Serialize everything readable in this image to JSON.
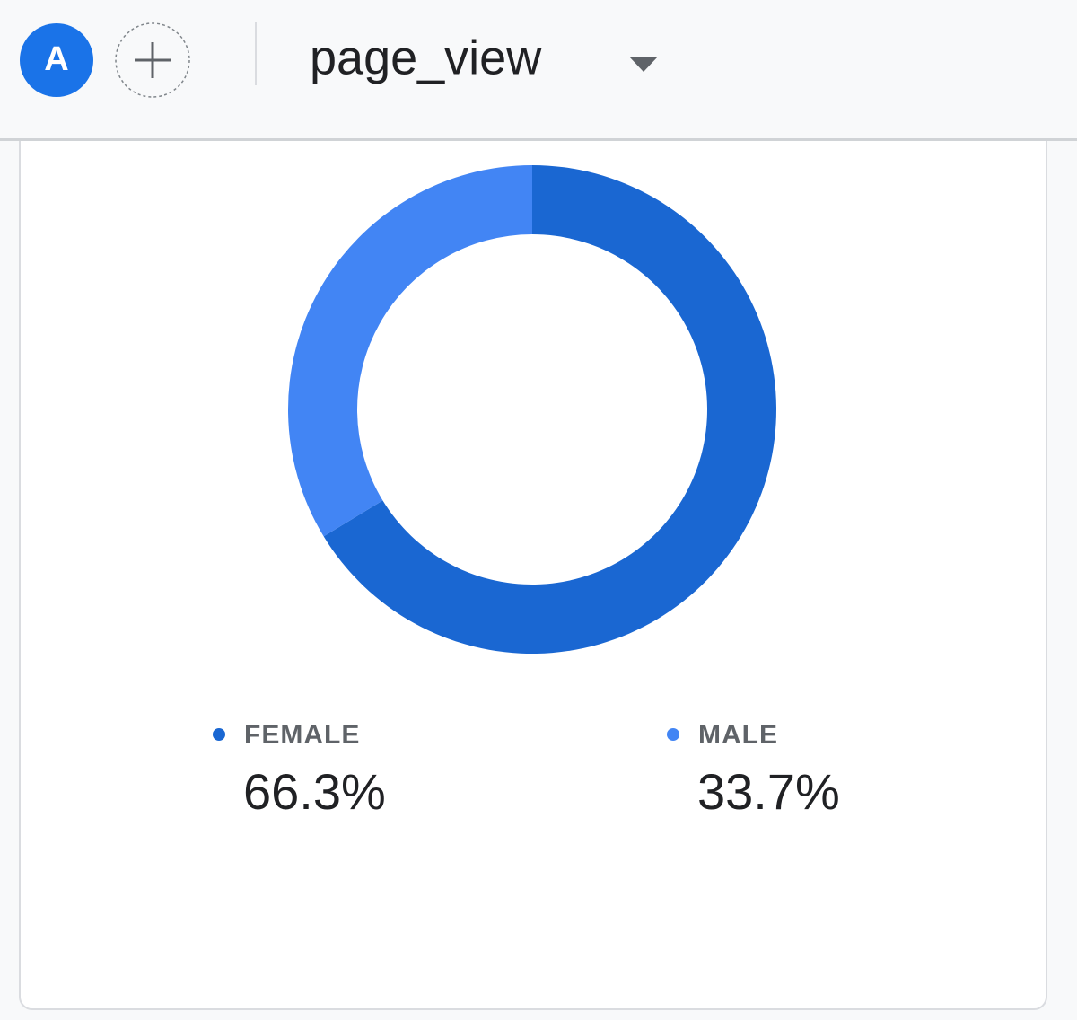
{
  "header": {
    "avatar": "A",
    "dimension": "page_view"
  },
  "chart_data": {
    "type": "donut",
    "categories": [
      "FEMALE",
      "MALE"
    ],
    "values": [
      66.3,
      33.7
    ],
    "value_labels": [
      "66.3%",
      "33.7%"
    ],
    "colors": [
      "#1a67d2",
      "#4285f4"
    ]
  }
}
